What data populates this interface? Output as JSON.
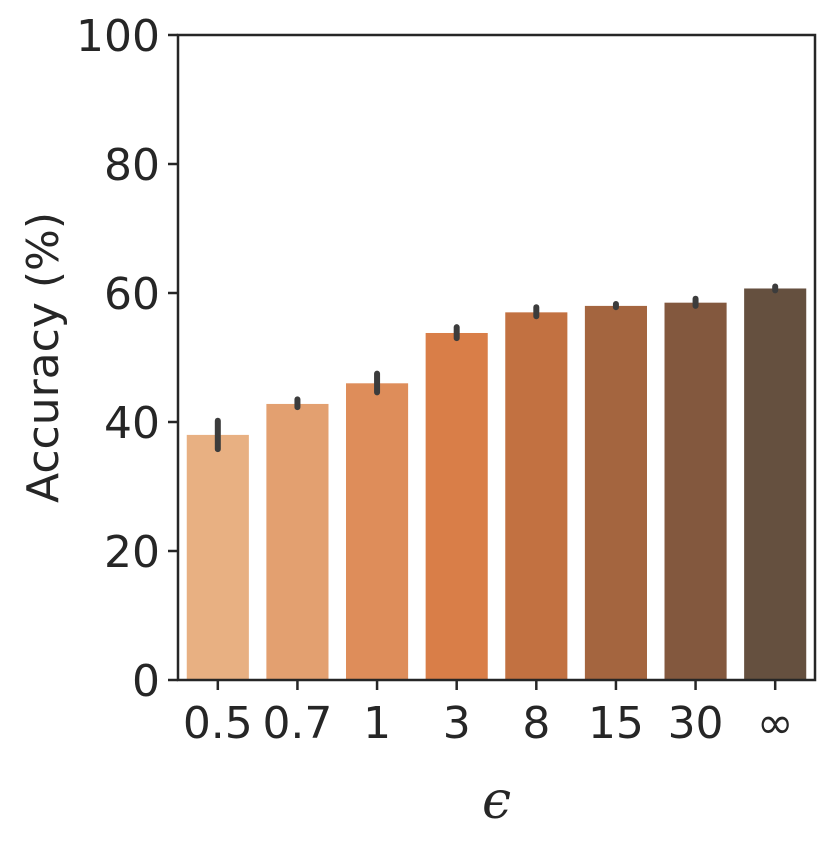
{
  "chart_data": {
    "type": "bar",
    "categories": [
      "0.5",
      "0.7",
      "1",
      "3",
      "8",
      "15",
      "30",
      "∞"
    ],
    "values": [
      38.0,
      42.8,
      46.0,
      53.8,
      57.0,
      58.0,
      58.5,
      60.7
    ],
    "error_low": [
      35.8,
      42.3,
      44.6,
      53.0,
      56.4,
      57.8,
      58.0,
      60.4
    ],
    "error_high": [
      40.2,
      43.5,
      47.5,
      54.7,
      57.8,
      58.3,
      59.1,
      61.0
    ],
    "colors": [
      "#e8b082",
      "#e3a070",
      "#de8d5a",
      "#d97e48",
      "#c27141",
      "#a4653f",
      "#83583e",
      "#65503f"
    ],
    "xlabel": "ϵ",
    "ylabel": "Accuracy (%)",
    "ylim": [
      0,
      100
    ],
    "yticks": [
      "0",
      "20",
      "40",
      "60",
      "80",
      "100"
    ],
    "grid": false
  }
}
